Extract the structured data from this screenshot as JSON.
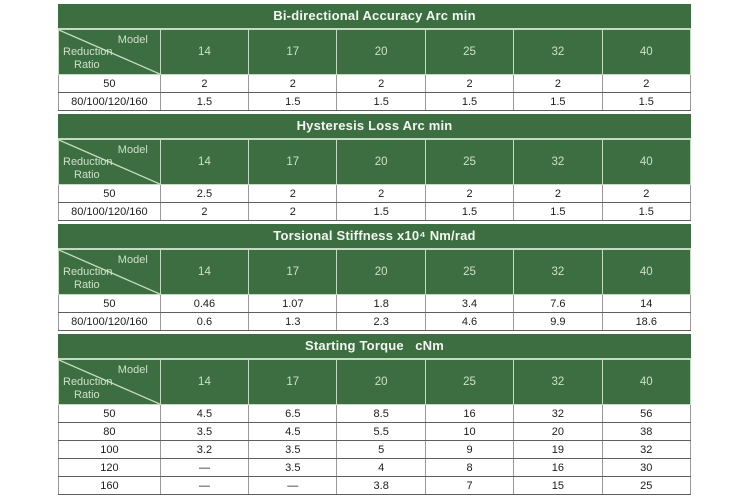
{
  "colors": {
    "header_green": "#3c6e42",
    "header_grid_line": "#c6dcc2",
    "title_text": "#f2f7f0",
    "header_text": "#cde0c8",
    "data_text": "#1c1c1c",
    "grid_gray": "#9a9a9a",
    "grid_dark": "#5e5e5e",
    "page_bg": "#ffffff"
  },
  "corner": {
    "model": "Model",
    "reduction_line1": "Reduction",
    "reduction_line2": "Ratio"
  },
  "columns": [
    "14",
    "17",
    "20",
    "25",
    "32",
    "40"
  ],
  "tables": [
    {
      "title": "Bi-directional Accuracy Arc min",
      "rows": [
        {
          "label": "50",
          "values": [
            "2",
            "2",
            "2",
            "2",
            "2",
            "2"
          ]
        },
        {
          "label": "80/100/120/160",
          "values": [
            "1.5",
            "1.5",
            "1.5",
            "1.5",
            "1.5",
            "1.5"
          ]
        }
      ]
    },
    {
      "title": "Hysteresis Loss Arc min",
      "rows": [
        {
          "label": "50",
          "values": [
            "2.5",
            "2",
            "2",
            "2",
            "2",
            "2"
          ]
        },
        {
          "label": "80/100/120/160",
          "values": [
            "2",
            "2",
            "1.5",
            "1.5",
            "1.5",
            "1.5"
          ]
        }
      ]
    },
    {
      "title": "Torsional Stiffness x10⁴ Nm/rad",
      "rows": [
        {
          "label": "50",
          "values": [
            "0.46",
            "1.07",
            "1.8",
            "3.4",
            "7.6",
            "14"
          ]
        },
        {
          "label": "80/100/120/160",
          "values": [
            "0.6",
            "1.3",
            "2.3",
            "4.6",
            "9.9",
            "18.6"
          ]
        }
      ]
    },
    {
      "title": "Starting Torque   cNm",
      "rows": [
        {
          "label": "50",
          "values": [
            "4.5",
            "6.5",
            "8.5",
            "16",
            "32",
            "56"
          ]
        },
        {
          "label": "80",
          "values": [
            "3.5",
            "4.5",
            "5.5",
            "10",
            "20",
            "38"
          ]
        },
        {
          "label": "100",
          "values": [
            "3.2",
            "3.5",
            "5",
            "9",
            "19",
            "32"
          ]
        },
        {
          "label": "120",
          "values": [
            "—",
            "3.5",
            "4",
            "8",
            "16",
            "30"
          ]
        },
        {
          "label": "160",
          "values": [
            "—",
            "—",
            "3.8",
            "7",
            "15",
            "25"
          ]
        }
      ]
    }
  ]
}
